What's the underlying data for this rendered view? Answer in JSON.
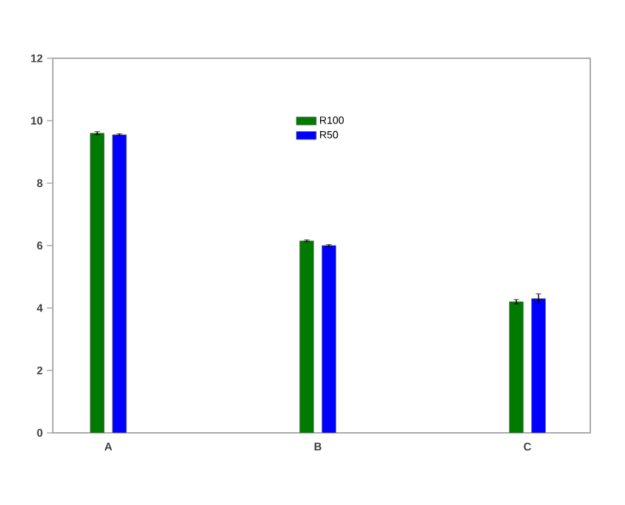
{
  "chart_data": {
    "type": "bar",
    "categories": [
      "A",
      "B",
      "C"
    ],
    "series": [
      {
        "name": "R100",
        "color": "#007a00",
        "values": [
          9.6,
          6.15,
          4.2
        ],
        "errors": [
          0.05,
          0.03,
          0.07
        ]
      },
      {
        "name": "R50",
        "color": "#0000ff",
        "values": [
          9.55,
          6.0,
          4.3
        ],
        "errors": [
          0.03,
          0.03,
          0.15
        ]
      }
    ],
    "ylim": [
      0,
      12
    ],
    "yticks": [
      0,
      2,
      4,
      6,
      8,
      10,
      12
    ],
    "legend": "top",
    "grid": false
  }
}
